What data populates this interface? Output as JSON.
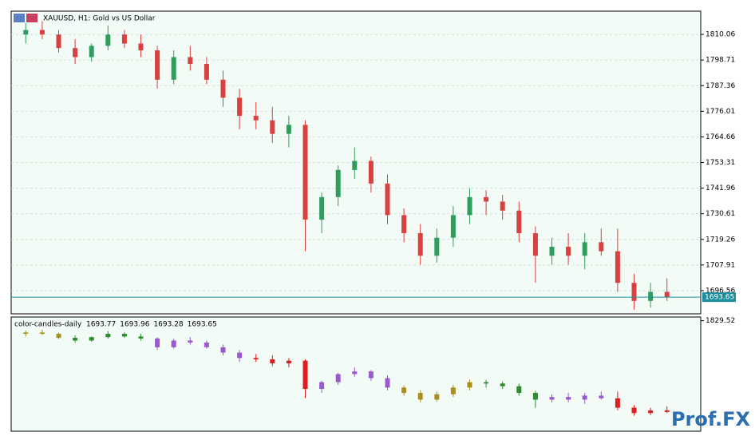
{
  "chart_data": [
    {
      "type": "candlestick",
      "title": "XAUUSD, H1:  Gold vs US Dollar",
      "open": [
        1810,
        1812,
        1810,
        1804,
        1800,
        1805,
        1810,
        1806,
        1803,
        1790,
        1800,
        1797,
        1790,
        1782,
        1774,
        1772,
        1766,
        1770,
        1728,
        1738,
        1750,
        1754,
        1744,
        1730,
        1722,
        1712,
        1720,
        1730,
        1738,
        1736,
        1732,
        1722,
        1712,
        1716,
        1712,
        1718,
        1714,
        1700,
        1692,
        1696
      ],
      "high": [
        1815,
        1816,
        1812,
        1808,
        1806,
        1814,
        1812,
        1810,
        1805,
        1803,
        1805,
        1800,
        1794,
        1786,
        1780,
        1778,
        1774,
        1772,
        1740,
        1752,
        1760,
        1756,
        1748,
        1733,
        1726,
        1724,
        1734,
        1742,
        1741,
        1739,
        1736,
        1725,
        1720,
        1722,
        1722,
        1724,
        1724,
        1704,
        1700,
        1702
      ],
      "low": [
        1806,
        1808,
        1802,
        1797,
        1798,
        1803,
        1804,
        1800,
        1786,
        1788,
        1794,
        1788,
        1778,
        1768,
        1768,
        1762,
        1760,
        1714,
        1722,
        1734,
        1746,
        1740,
        1726,
        1718,
        1708,
        1709,
        1716,
        1726,
        1730,
        1728,
        1718,
        1700,
        1708,
        1708,
        1706,
        1712,
        1696,
        1688,
        1689,
        1692
      ],
      "close": [
        1812,
        1810,
        1804,
        1800,
        1805,
        1810,
        1806,
        1803,
        1790,
        1800,
        1797,
        1790,
        1782,
        1774,
        1772,
        1766,
        1770,
        1728,
        1738,
        1750,
        1754,
        1744,
        1730,
        1722,
        1712,
        1720,
        1730,
        1738,
        1736,
        1732,
        1722,
        1712,
        1716,
        1712,
        1718,
        1714,
        1700,
        1692,
        1696,
        1693.65
      ],
      "up_color": "#2e9e5e",
      "down_color": "#d94040",
      "ylim": [
        1686.28,
        1820.35
      ],
      "yticks": [
        1810.06,
        1798.71,
        1787.36,
        1776.01,
        1764.66,
        1753.31,
        1741.96,
        1730.61,
        1719.26,
        1707.91,
        1696.56
      ],
      "current_price": 1693.65,
      "grid": true
    },
    {
      "type": "candlestick",
      "title": "color-candles-daily",
      "legend_values": [
        1693.77,
        1693.96,
        1693.28,
        1693.65
      ],
      "colors": [
        "#a8901e",
        "#a8901e",
        "#a8901e",
        "#2e8b2e",
        "#2e8b2e",
        "#2e8b2e",
        "#2e8b2e",
        "#2e8b2e",
        "#9b59d0",
        "#9b59d0",
        "#9b59d0",
        "#9b59d0",
        "#9b59d0",
        "#9b59d0",
        "#dd1f1f",
        "#dd1f1f",
        "#dd1f1f",
        "#dd1f1f",
        "#9b59d0",
        "#9b59d0",
        "#9b59d0",
        "#9b59d0",
        "#9b59d0",
        "#a8901e",
        "#a8901e",
        "#a8901e",
        "#a8901e",
        "#a8901e",
        "#2e8b2e",
        "#2e8b2e",
        "#2e8b2e",
        "#2e8b2e",
        "#9b59d0",
        "#9b59d0",
        "#9b59d0",
        "#9b59d0",
        "#dd1f1f",
        "#dd1f1f",
        "#dd1f1f",
        "#dd1f1f"
      ],
      "ylim": [
        1665,
        1835
      ],
      "yticks": [
        1829.52
      ]
    }
  ],
  "watermark": "Prof.FX"
}
